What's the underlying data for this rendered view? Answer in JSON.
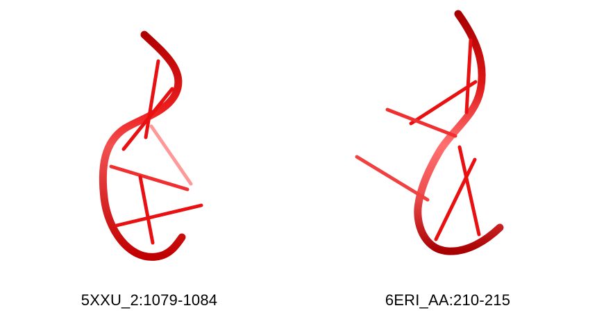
{
  "panels": [
    {
      "label": "5XXU_2:1079-1084",
      "backbone_color": "#cc0000",
      "base_color": "#ff2020"
    },
    {
      "label": "6ERI_AA:210-215",
      "backbone_color": "#cc0000",
      "base_color": "#ff2020"
    }
  ]
}
